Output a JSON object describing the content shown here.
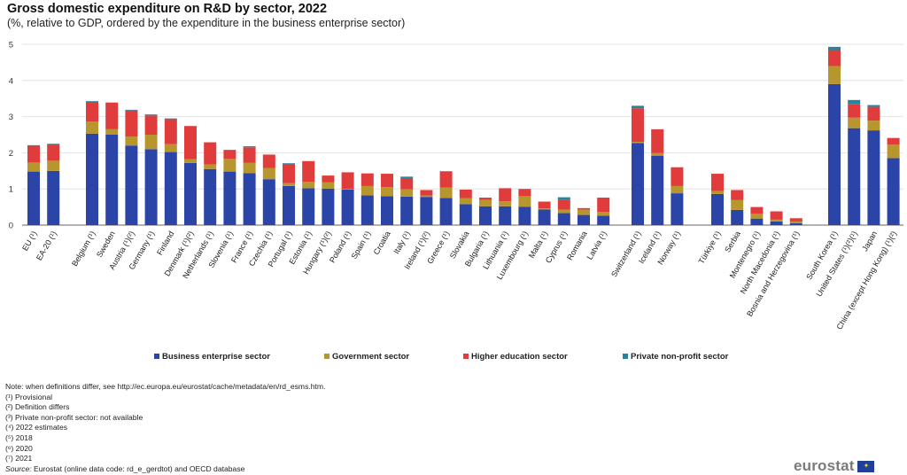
{
  "title": "Gross domestic expenditure on R&D by sector, 2022",
  "subtitle": "(%, relative to GDP, ordered by the expenditure in the business enterprise sector)",
  "colors": {
    "business": "#2a44a8",
    "government": "#b8962e",
    "higher": "#e03c3c",
    "nonprofit": "#25849e",
    "grid": "#dddddd",
    "axis": "#666666"
  },
  "chart_data": {
    "type": "bar",
    "stacked": true,
    "ylim": [
      0,
      5
    ],
    "yticks": [
      0,
      1,
      2,
      3,
      4,
      5
    ],
    "grid": true,
    "legend_position": "bottom",
    "series": [
      {
        "key": "business",
        "name": "Business enterprise sector"
      },
      {
        "key": "government",
        "name": "Government sector"
      },
      {
        "key": "higher",
        "name": "Higher education sector"
      },
      {
        "key": "nonprofit",
        "name": "Private non-profit sector"
      }
    ],
    "groups": [
      {
        "items": [
          {
            "label": "EU (¹)",
            "values": [
              1.48,
              0.25,
              0.47,
              0.01
            ]
          },
          {
            "label": "EA-20 (¹)",
            "values": [
              1.5,
              0.28,
              0.46,
              0.01
            ]
          }
        ]
      },
      {
        "items": [
          {
            "label": "Belgium (¹)",
            "values": [
              2.53,
              0.33,
              0.55,
              0.02
            ]
          },
          {
            "label": "Sweden",
            "values": [
              2.5,
              0.15,
              0.74,
              0.0
            ]
          },
          {
            "label": "Austria (¹)(²)",
            "values": [
              2.2,
              0.25,
              0.72,
              0.02
            ]
          },
          {
            "label": "Germany (¹)",
            "values": [
              2.1,
              0.4,
              0.53,
              0.03
            ]
          },
          {
            "label": "Finland",
            "values": [
              2.02,
              0.22,
              0.69,
              0.02
            ]
          },
          {
            "label": "Denmark (¹)(²)",
            "values": [
              1.72,
              0.1,
              0.92,
              0.0
            ]
          },
          {
            "label": "Netherlands (¹)",
            "values": [
              1.55,
              0.13,
              0.61,
              0.0
            ]
          },
          {
            "label": "Slovenia (¹)",
            "values": [
              1.48,
              0.35,
              0.25,
              0.0
            ]
          },
          {
            "label": "France (¹)",
            "values": [
              1.44,
              0.28,
              0.43,
              0.03
            ]
          },
          {
            "label": "Czechia (¹)",
            "values": [
              1.27,
              0.31,
              0.37,
              0.0
            ]
          },
          {
            "label": "Portugal (¹)",
            "values": [
              1.08,
              0.08,
              0.52,
              0.03
            ]
          },
          {
            "label": "Estonia (¹)",
            "values": [
              1.02,
              0.18,
              0.57,
              0.0
            ]
          },
          {
            "label": "Hungary (¹)(²)",
            "values": [
              1.01,
              0.17,
              0.19,
              0.0
            ]
          },
          {
            "label": "Poland (¹)",
            "values": [
              0.98,
              0.02,
              0.46,
              0.0
            ]
          },
          {
            "label": "Spain (¹)",
            "values": [
              0.82,
              0.26,
              0.35,
              0.0
            ]
          },
          {
            "label": "Croatia",
            "values": [
              0.8,
              0.25,
              0.37,
              0.0
            ]
          },
          {
            "label": "Italy (¹)",
            "values": [
              0.79,
              0.2,
              0.31,
              0.04
            ]
          },
          {
            "label": "Ireland (¹)(²)",
            "values": [
              0.78,
              0.04,
              0.15,
              0.0
            ]
          },
          {
            "label": "Greece (¹)",
            "values": [
              0.75,
              0.29,
              0.44,
              0.01
            ]
          },
          {
            "label": "Slovakia",
            "values": [
              0.58,
              0.16,
              0.24,
              0.0
            ]
          },
          {
            "label": "Bulgaria (¹)",
            "values": [
              0.52,
              0.18,
              0.06,
              0.0
            ]
          },
          {
            "label": "Lithuania (¹)",
            "values": [
              0.52,
              0.14,
              0.36,
              0.0
            ]
          },
          {
            "label": "Luxembourg (¹)",
            "values": [
              0.51,
              0.29,
              0.2,
              0.0
            ]
          },
          {
            "label": "Malta (¹)",
            "values": [
              0.43,
              0.03,
              0.19,
              0.0
            ]
          },
          {
            "label": "Cyprus (¹)",
            "values": [
              0.33,
              0.1,
              0.26,
              0.08
            ]
          },
          {
            "label": "Romania",
            "values": [
              0.28,
              0.15,
              0.04,
              0.0
            ]
          },
          {
            "label": "Latvia (¹)",
            "values": [
              0.26,
              0.1,
              0.4,
              0.0
            ]
          }
        ]
      },
      {
        "items": [
          {
            "label": "Switzerland (¹)",
            "values": [
              2.27,
              0.03,
              0.93,
              0.07
            ]
          },
          {
            "label": "Iceland (¹)",
            "values": [
              1.92,
              0.07,
              0.66,
              0.0
            ]
          },
          {
            "label": "Norway (¹)",
            "values": [
              0.88,
              0.2,
              0.52,
              0.0
            ]
          }
        ]
      },
      {
        "items": [
          {
            "label": "Türkiye (¹)",
            "values": [
              0.86,
              0.08,
              0.48,
              0.0
            ]
          },
          {
            "label": "Serbia",
            "values": [
              0.42,
              0.27,
              0.28,
              0.0
            ]
          },
          {
            "label": "Montenegro (¹)",
            "values": [
              0.18,
              0.13,
              0.19,
              0.0
            ]
          },
          {
            "label": "North Macedonia (¹)",
            "values": [
              0.1,
              0.05,
              0.23,
              0.0
            ]
          },
          {
            "label": "Bosnia and Herzegovina (¹)",
            "values": [
              0.05,
              0.05,
              0.09,
              0.0
            ]
          }
        ]
      },
      {
        "items": [
          {
            "label": "South Korea (¹)",
            "values": [
              3.9,
              0.5,
              0.44,
              0.09
            ]
          },
          {
            "label": "United States (¹)(²)(¹)",
            "values": [
              2.68,
              0.29,
              0.37,
              0.12
            ]
          },
          {
            "label": "Japan",
            "values": [
              2.62,
              0.27,
              0.38,
              0.05
            ]
          },
          {
            "label": "China (except Hong Kong) (¹)(²)",
            "values": [
              1.85,
              0.38,
              0.18,
              0.0
            ]
          }
        ]
      }
    ]
  },
  "notes": [
    "Note: when definitions differ, see http://ec.europa.eu/eurostat/cache/metadata/en/rd_esms.htm.",
    "(¹) Provisional",
    "(²) Definition differs",
    "(³) Private non-profit sector: not available",
    "(⁴) 2022 estimates",
    "(⁵) 2018",
    "(⁶) 2020",
    "(⁷) 2021"
  ],
  "source_label": "Source:",
  "source_text": " Eurostat (online data code: rd_e_gerdtot) and OECD database",
  "logo_text": "eurostat"
}
